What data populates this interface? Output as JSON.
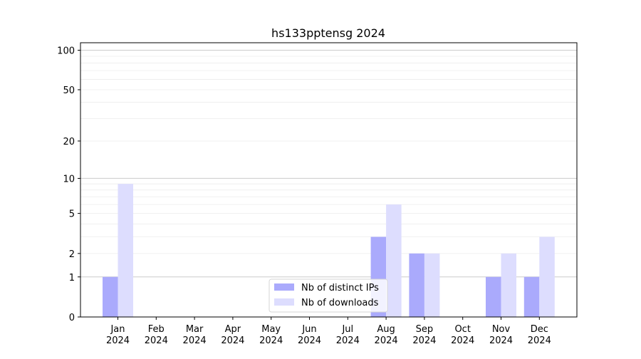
{
  "chart_data": {
    "type": "bar",
    "title": "hs133pptensg 2024",
    "xlabel": "",
    "ylabel": "",
    "yscale": "log(1+y)",
    "ylim": [
      0,
      114
    ],
    "yticks": [
      0,
      1,
      2,
      5,
      10,
      20,
      50,
      100
    ],
    "ytick_labels": [
      "0",
      "1",
      "2",
      "5",
      "10",
      "20",
      "50",
      "100"
    ],
    "minor_gridlines": [
      3,
      4,
      6,
      7,
      8,
      9,
      30,
      40,
      60,
      70,
      80,
      90
    ],
    "categories": [
      [
        "Jan",
        "2024"
      ],
      [
        "Feb",
        "2024"
      ],
      [
        "Mar",
        "2024"
      ],
      [
        "Apr",
        "2024"
      ],
      [
        "May",
        "2024"
      ],
      [
        "Jun",
        "2024"
      ],
      [
        "Jul",
        "2024"
      ],
      [
        "Aug",
        "2024"
      ],
      [
        "Sep",
        "2024"
      ],
      [
        "Oct",
        "2024"
      ],
      [
        "Nov",
        "2024"
      ],
      [
        "Dec",
        "2024"
      ]
    ],
    "series": [
      {
        "name": "Nb of distinct IPs",
        "color": "#aaaafc",
        "values": [
          1,
          0,
          0,
          0,
          0,
          0,
          0,
          3,
          2,
          0,
          1,
          1
        ]
      },
      {
        "name": "Nb of downloads",
        "color": "#ddddfe",
        "values": [
          9,
          0,
          0,
          0,
          0,
          0,
          0,
          6,
          2,
          0,
          2,
          3
        ]
      }
    ],
    "legend": "bottom-center",
    "grid": true
  }
}
